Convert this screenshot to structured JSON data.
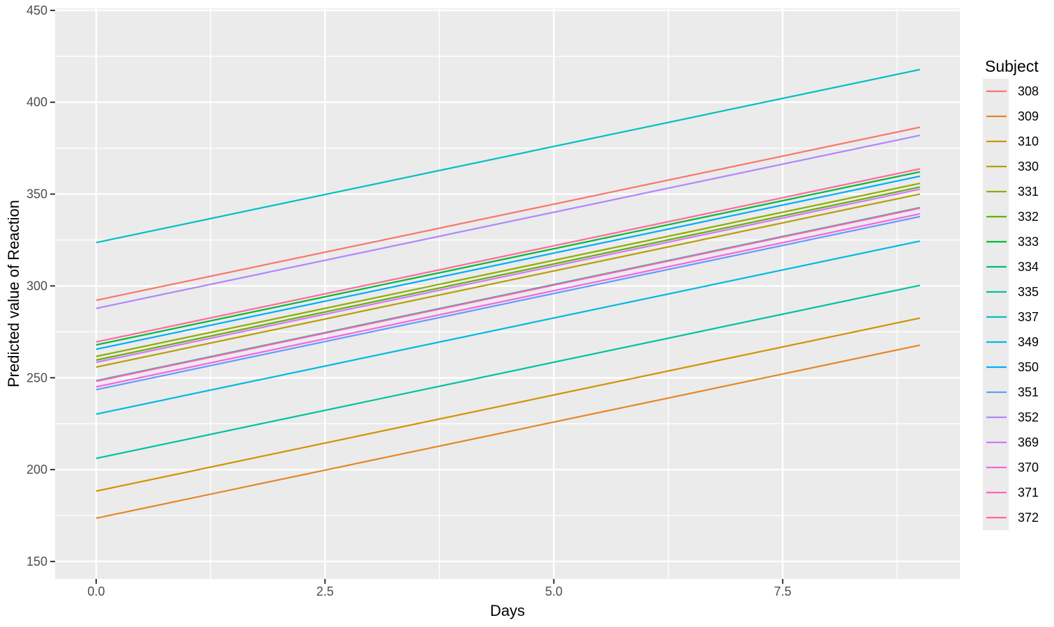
{
  "figure": {
    "background": "#FFFFFF",
    "panel_background": "#EBEBEB",
    "grid_color": "#FFFFFF",
    "tick_mark_color": "#333333",
    "tick_label_color": "#4D4D4D",
    "axis_title_color": "#000000",
    "legend_key_background": "#EBEBEB"
  },
  "chart_data": {
    "type": "line",
    "title": "",
    "xlabel": "Days",
    "ylabel": "Predicted value of Reaction",
    "legend_title": "Subject",
    "legend_position": "right",
    "grid": true,
    "xlim": [
      -0.449,
      9.436
    ],
    "ylim": [
      140.5,
      451.1
    ],
    "x_ticks": [
      0.0,
      2.5,
      5.0,
      7.5
    ],
    "x_tick_labels": [
      "0.0",
      "2.5",
      "5.0",
      "7.5"
    ],
    "x_minor_ticks": [
      1.25,
      3.75,
      6.25,
      8.75
    ],
    "y_ticks": [
      150,
      200,
      250,
      300,
      350,
      400,
      450
    ],
    "y_tick_labels": [
      "150",
      "200",
      "250",
      "300",
      "350",
      "400",
      "450"
    ],
    "y_minor_ticks": [
      175,
      225,
      275,
      325,
      375,
      425
    ],
    "x_line_span": [
      0,
      9
    ],
    "common_slope": 10.467,
    "series": [
      {
        "subject": "308",
        "color": "#F8766D",
        "y_start": 292.19,
        "y_end": 386.39
      },
      {
        "subject": "309",
        "color": "#E88526",
        "y_start": 173.56,
        "y_end": 267.76
      },
      {
        "subject": "310",
        "color": "#D39200",
        "y_start": 188.3,
        "y_end": 282.5
      },
      {
        "subject": "330",
        "color": "#B79F00",
        "y_start": 255.81,
        "y_end": 350.02
      },
      {
        "subject": "331",
        "color": "#93AA00",
        "y_start": 261.62,
        "y_end": 355.83
      },
      {
        "subject": "332",
        "color": "#5EB300",
        "y_start": 259.63,
        "y_end": 353.83
      },
      {
        "subject": "333",
        "color": "#00BA38",
        "y_start": 267.91,
        "y_end": 362.11
      },
      {
        "subject": "334",
        "color": "#00BF74",
        "y_start": 248.41,
        "y_end": 342.61
      },
      {
        "subject": "335",
        "color": "#00C19F",
        "y_start": 206.12,
        "y_end": 300.33
      },
      {
        "subject": "337",
        "color": "#00BFC4",
        "y_start": 323.59,
        "y_end": 417.79
      },
      {
        "subject": "349",
        "color": "#00B9E3",
        "y_start": 230.21,
        "y_end": 324.41
      },
      {
        "subject": "350",
        "color": "#00ADFA",
        "y_start": 265.52,
        "y_end": 359.72
      },
      {
        "subject": "351",
        "color": "#619CFF",
        "y_start": 243.54,
        "y_end": 337.75
      },
      {
        "subject": "352",
        "color": "#AE87FF",
        "y_start": 287.78,
        "y_end": 381.99
      },
      {
        "subject": "369",
        "color": "#DB72FB",
        "y_start": 258.44,
        "y_end": 352.65
      },
      {
        "subject": "370",
        "color": "#F564E3",
        "y_start": 245.04,
        "y_end": 339.25
      },
      {
        "subject": "371",
        "color": "#FF61C3",
        "y_start": 248.11,
        "y_end": 342.32
      },
      {
        "subject": "372",
        "color": "#FF699C",
        "y_start": 269.52,
        "y_end": 363.73
      }
    ]
  }
}
